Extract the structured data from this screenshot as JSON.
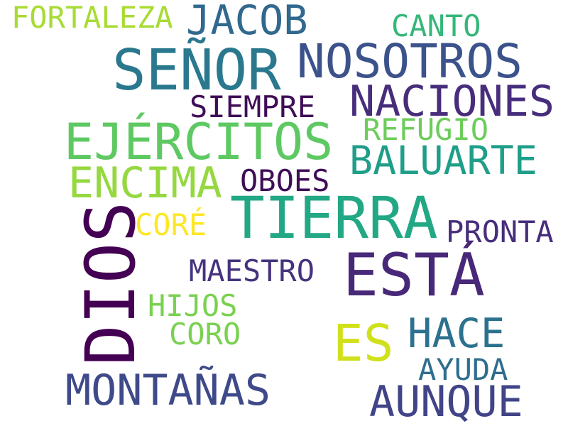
{
  "words": {
    "dios": {
      "text": "DIOS",
      "color": "#440154"
    },
    "tierra": {
      "text": "TIERRA",
      "color": "#22a884"
    },
    "senor": {
      "text": "SEÑOR",
      "color": "#2a788e"
    },
    "nosotros": {
      "text": "NOSOTROS",
      "color": "#3b528b"
    },
    "esta": {
      "text": "ESTÁ",
      "color": "#482878"
    },
    "ejercitos": {
      "text": "EJÉRCITOS",
      "color": "#5ec962"
    },
    "naciones": {
      "text": "NACIONES",
      "color": "#472d7b"
    },
    "baluarte": {
      "text": "BALUARTE",
      "color": "#1f9e89"
    },
    "encima": {
      "text": "ENCIMA",
      "color": "#95d840"
    },
    "montanas": {
      "text": "MONTAÑAS",
      "color": "#3e4a89"
    },
    "aunque": {
      "text": "AUNQUE",
      "color": "#414487"
    },
    "jacob": {
      "text": "JACOB",
      "color": "#31688e"
    },
    "es": {
      "text": "ES",
      "color": "#d0e11c"
    },
    "hace": {
      "text": "HACE",
      "color": "#2c728e"
    },
    "oboes": {
      "text": "OBOES",
      "color": "#3f0e57"
    },
    "siempre": {
      "text": "SIEMPRE",
      "color": "#3f0e57"
    },
    "fortaleza": {
      "text": "FORTALEZA",
      "color": "#a8db34"
    },
    "canto": {
      "text": "CANTO",
      "color": "#35b779"
    },
    "refugio": {
      "text": "REFUGIO",
      "color": "#6ccd5a"
    },
    "maestro": {
      "text": "MAESTRO",
      "color": "#46337e"
    },
    "pronta": {
      "text": "PRONTA",
      "color": "#472d7b"
    },
    "hijos": {
      "text": "HIJOS",
      "color": "#7ad151"
    },
    "coro": {
      "text": "CORO",
      "color": "#7ad151"
    },
    "core": {
      "text": "CORÉ",
      "color": "#fde725"
    },
    "ayuda": {
      "text": "AYUDA",
      "color": "#2e6e8e"
    }
  }
}
